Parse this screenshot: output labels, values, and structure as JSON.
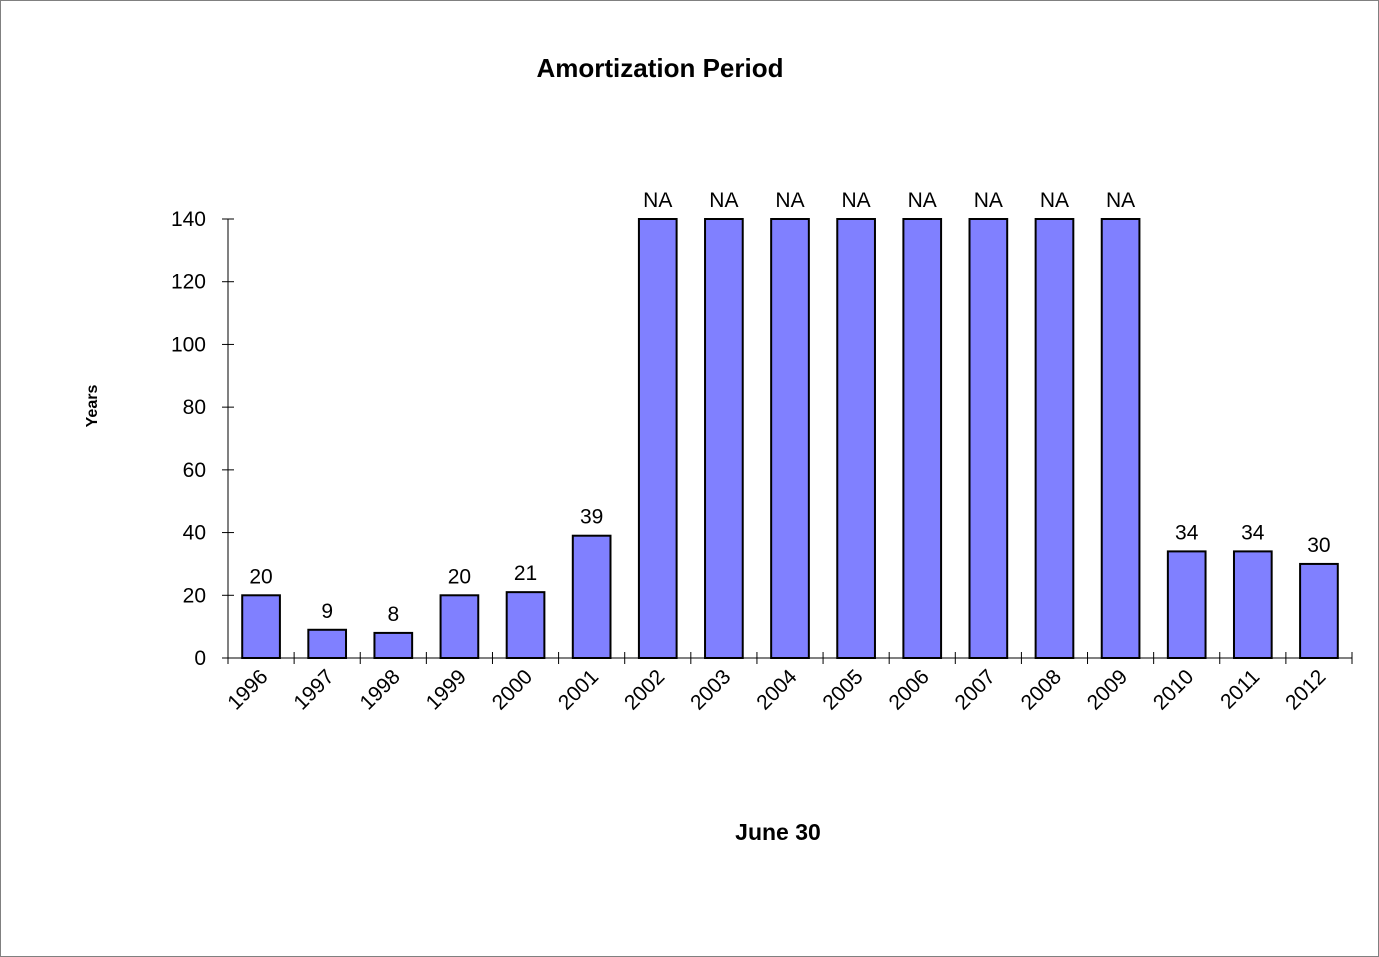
{
  "chart_data": {
    "type": "bar",
    "title": "Amortization Period",
    "xlabel": "June 30",
    "ylabel": "Years",
    "ylim": [
      0,
      140
    ],
    "yticks": [
      0,
      20,
      40,
      60,
      80,
      100,
      120,
      140
    ],
    "grid": false,
    "legend": "none",
    "bar_color": "#8080FF",
    "bar_outline_color": "#000000",
    "categories": [
      "1996",
      "1997",
      "1998",
      "1999",
      "2000",
      "2001",
      "2002",
      "2003",
      "2004",
      "2005",
      "2006",
      "2007",
      "2008",
      "2009",
      "2010",
      "2011",
      "2012"
    ],
    "values": [
      20,
      9,
      8,
      20,
      21,
      39,
      140,
      140,
      140,
      140,
      140,
      140,
      140,
      140,
      34,
      34,
      30
    ],
    "data_labels": [
      "20",
      "9",
      "8",
      "20",
      "21",
      "39",
      "NA",
      "NA",
      "NA",
      "NA",
      "NA",
      "NA",
      "NA",
      "NA",
      "34",
      "34",
      "30"
    ]
  }
}
